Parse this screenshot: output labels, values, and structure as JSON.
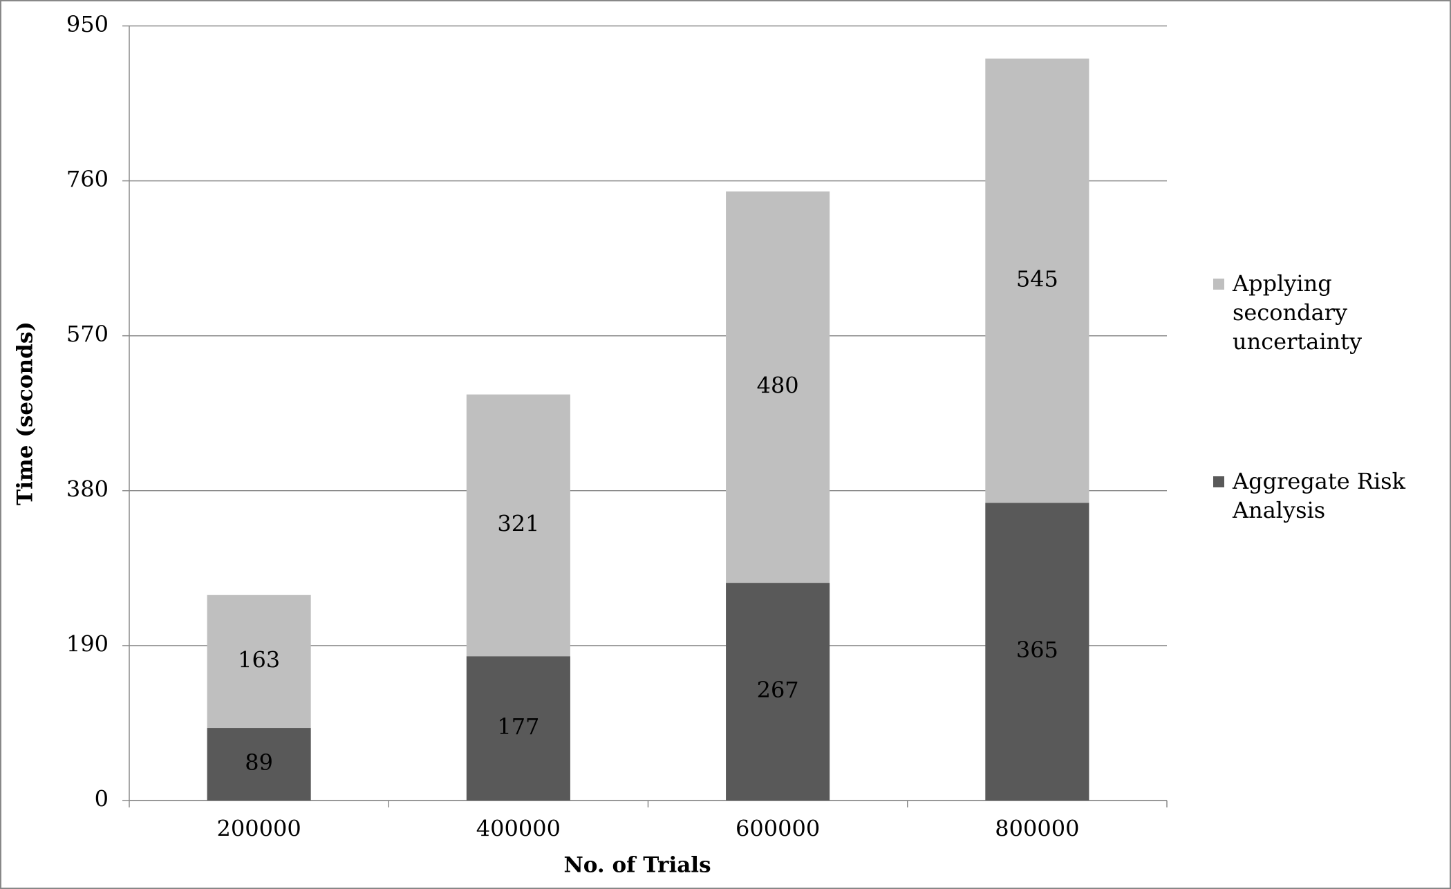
{
  "chart_data": {
    "type": "stacked-bar",
    "x_label": "No. of Trials",
    "y_label": "Time (seconds)",
    "categories": [
      "200000",
      "400000",
      "600000",
      "800000"
    ],
    "series": [
      {
        "name": "Aggregate Risk Analysis",
        "color": "#595959",
        "values": [
          89,
          177,
          267,
          365
        ]
      },
      {
        "name": "Applying secondary uncertainty",
        "color": "#bfbfbf",
        "values": [
          163,
          321,
          480,
          545
        ]
      }
    ],
    "ylim": [
      0,
      950
    ],
    "yticks": [
      0,
      190,
      380,
      570,
      760,
      950
    ],
    "grid": true,
    "legend": "right"
  }
}
